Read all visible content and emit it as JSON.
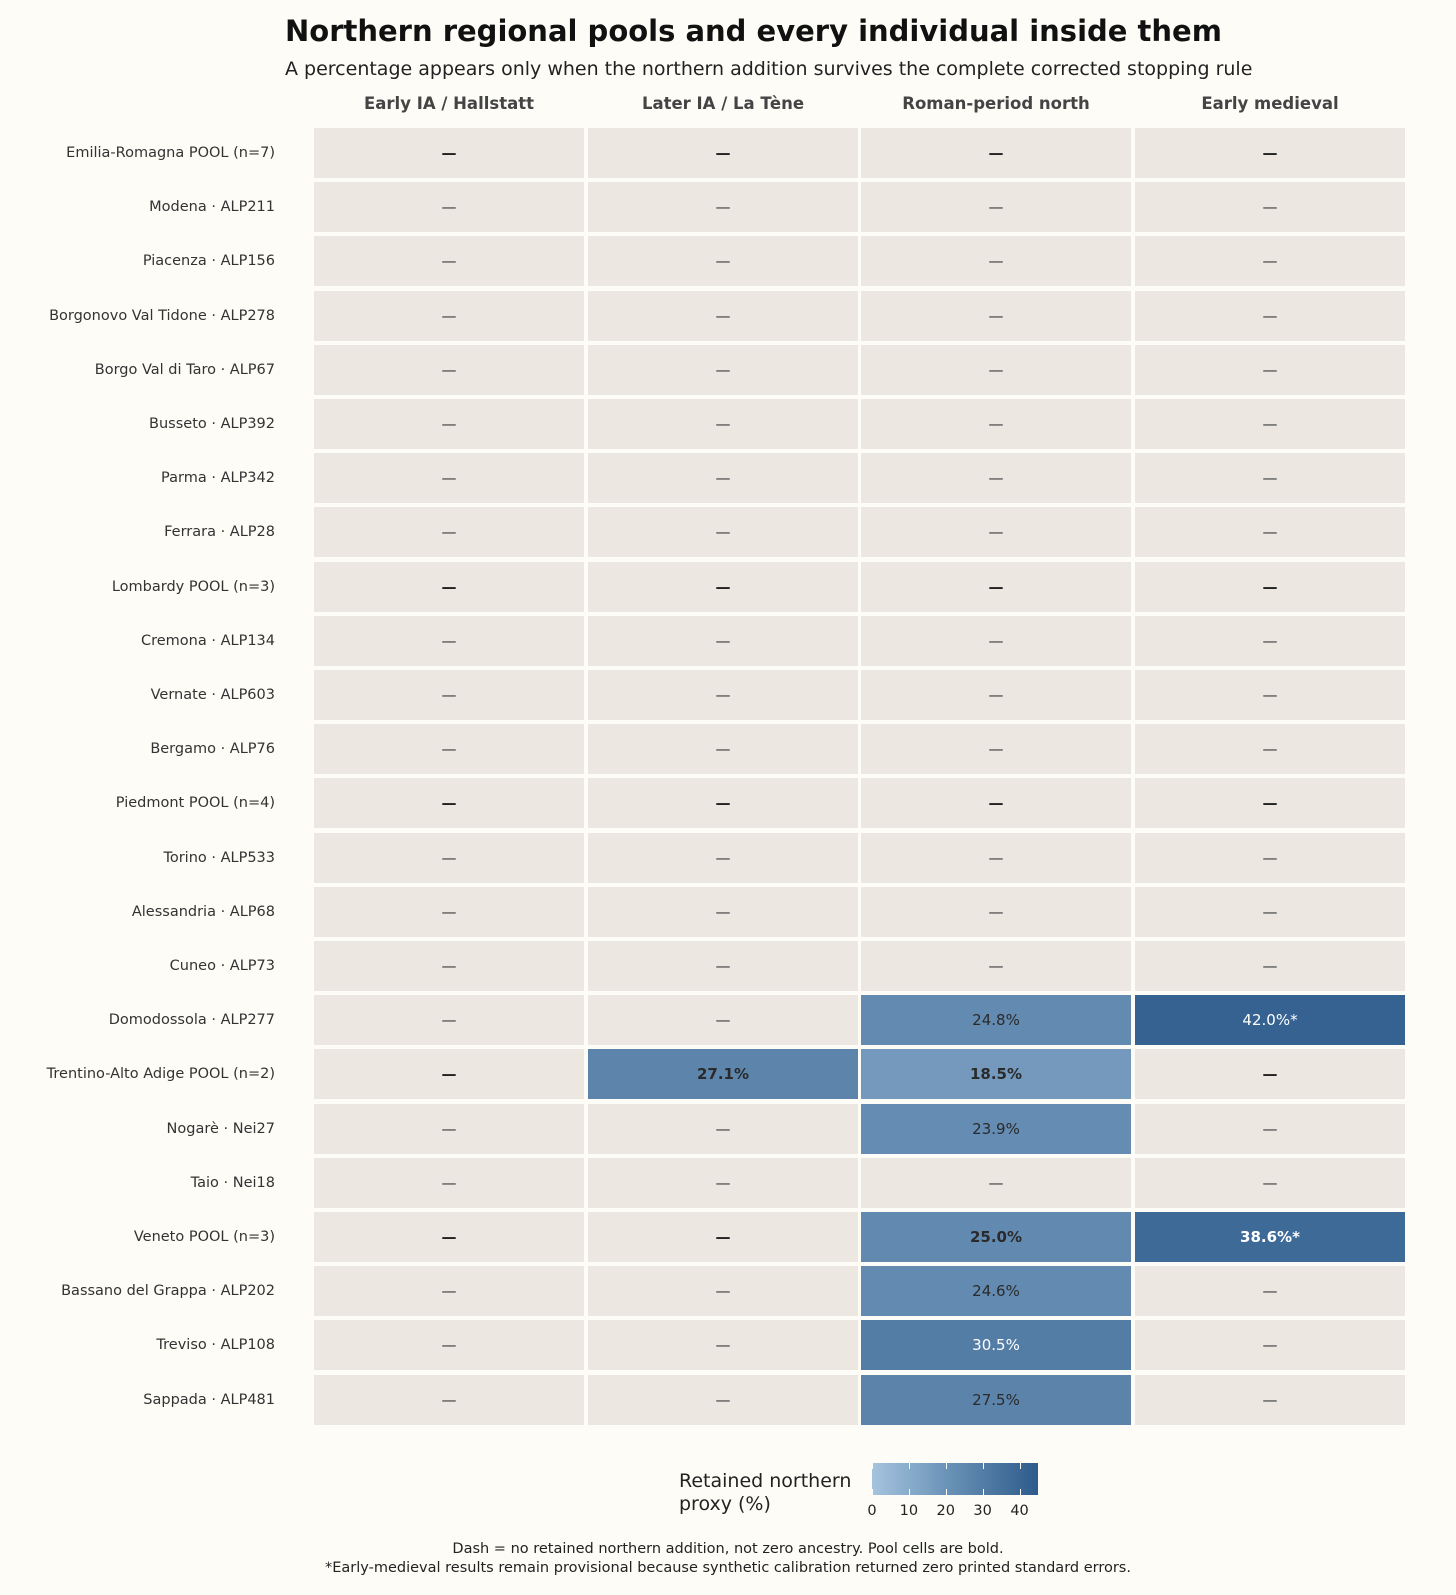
{
  "chart_data": {
    "type": "heatmap",
    "title": "Northern regional pools and every individual inside them",
    "subtitle": "A percentage appears only when the northern addition survives the complete corrected stopping rule",
    "columns": [
      "Early IA / Hallstatt",
      "Later IA / La Tène",
      "Roman-period north",
      "Early medieval"
    ],
    "rows": [
      {
        "label": "Emilia-Romagna POOL (n=7)",
        "pool": true,
        "values": [
          null,
          null,
          null,
          null
        ],
        "flags": [
          "",
          "",
          "",
          ""
        ]
      },
      {
        "label": "Modena · ALP211",
        "pool": false,
        "values": [
          null,
          null,
          null,
          null
        ],
        "flags": [
          "",
          "",
          "",
          ""
        ]
      },
      {
        "label": "Piacenza · ALP156",
        "pool": false,
        "values": [
          null,
          null,
          null,
          null
        ],
        "flags": [
          "",
          "",
          "",
          ""
        ]
      },
      {
        "label": "Borgonovo Val Tidone · ALP278",
        "pool": false,
        "values": [
          null,
          null,
          null,
          null
        ],
        "flags": [
          "",
          "",
          "",
          ""
        ]
      },
      {
        "label": "Borgo Val di Taro · ALP67",
        "pool": false,
        "values": [
          null,
          null,
          null,
          null
        ],
        "flags": [
          "",
          "",
          "",
          ""
        ]
      },
      {
        "label": "Busseto · ALP392",
        "pool": false,
        "values": [
          null,
          null,
          null,
          null
        ],
        "flags": [
          "",
          "",
          "",
          ""
        ]
      },
      {
        "label": "Parma · ALP342",
        "pool": false,
        "values": [
          null,
          null,
          null,
          null
        ],
        "flags": [
          "",
          "",
          "",
          ""
        ]
      },
      {
        "label": "Ferrara · ALP28",
        "pool": false,
        "values": [
          null,
          null,
          null,
          null
        ],
        "flags": [
          "",
          "",
          "",
          ""
        ]
      },
      {
        "label": "Lombardy POOL (n=3)",
        "pool": true,
        "values": [
          null,
          null,
          null,
          null
        ],
        "flags": [
          "",
          "",
          "",
          ""
        ]
      },
      {
        "label": "Cremona · ALP134",
        "pool": false,
        "values": [
          null,
          null,
          null,
          null
        ],
        "flags": [
          "",
          "",
          "",
          ""
        ]
      },
      {
        "label": "Vernate · ALP603",
        "pool": false,
        "values": [
          null,
          null,
          null,
          null
        ],
        "flags": [
          "",
          "",
          "",
          ""
        ]
      },
      {
        "label": "Bergamo · ALP76",
        "pool": false,
        "values": [
          null,
          null,
          null,
          null
        ],
        "flags": [
          "",
          "",
          "",
          ""
        ]
      },
      {
        "label": "Piedmont POOL (n=4)",
        "pool": true,
        "values": [
          null,
          null,
          null,
          null
        ],
        "flags": [
          "",
          "",
          "",
          ""
        ]
      },
      {
        "label": "Torino · ALP533",
        "pool": false,
        "values": [
          null,
          null,
          null,
          null
        ],
        "flags": [
          "",
          "",
          "",
          ""
        ]
      },
      {
        "label": "Alessandria · ALP68",
        "pool": false,
        "values": [
          null,
          null,
          null,
          null
        ],
        "flags": [
          "",
          "",
          "",
          ""
        ]
      },
      {
        "label": "Cuneo · ALP73",
        "pool": false,
        "values": [
          null,
          null,
          null,
          null
        ],
        "flags": [
          "",
          "",
          "",
          ""
        ]
      },
      {
        "label": "Domodossola · ALP277",
        "pool": false,
        "values": [
          null,
          null,
          24.8,
          42.0
        ],
        "flags": [
          "",
          "",
          "",
          "*"
        ]
      },
      {
        "label": "Trentino-Alto Adige POOL (n=2)",
        "pool": true,
        "values": [
          null,
          27.1,
          18.5,
          null
        ],
        "flags": [
          "",
          "",
          "",
          ""
        ]
      },
      {
        "label": "Nogarè · Nei27",
        "pool": false,
        "values": [
          null,
          null,
          23.9,
          null
        ],
        "flags": [
          "",
          "",
          "",
          ""
        ]
      },
      {
        "label": "Taio · Nei18",
        "pool": false,
        "values": [
          null,
          null,
          null,
          null
        ],
        "flags": [
          "",
          "",
          "",
          ""
        ]
      },
      {
        "label": "Veneto POOL (n=3)",
        "pool": true,
        "values": [
          null,
          null,
          25.0,
          38.6
        ],
        "flags": [
          "",
          "",
          "",
          "*"
        ]
      },
      {
        "label": "Bassano del Grappa · ALP202",
        "pool": false,
        "values": [
          null,
          null,
          24.6,
          null
        ],
        "flags": [
          "",
          "",
          "",
          ""
        ]
      },
      {
        "label": "Treviso · ALP108",
        "pool": false,
        "values": [
          null,
          null,
          30.5,
          null
        ],
        "flags": [
          "",
          "",
          "",
          ""
        ]
      },
      {
        "label": "Sappada · ALP481",
        "pool": false,
        "values": [
          null,
          null,
          27.5,
          null
        ],
        "flags": [
          "",
          "",
          "",
          ""
        ]
      }
    ],
    "missing_symbol": "—",
    "legend": {
      "title": "Retained northern proxy (%)",
      "ticks": [
        0,
        10,
        20,
        30,
        40
      ],
      "range": [
        0,
        45
      ]
    },
    "colors": {
      "empty_cell": "#ece8e1",
      "low": "#a5c4de",
      "high": "#2d5b8b",
      "background": "#fdfcf7"
    },
    "notes": [
      "Dash = no retained northern addition, not zero ancestry. Pool cells are bold.",
      "*Early-medieval results remain provisional because synthetic calibration returned zero printed standard errors."
    ]
  }
}
